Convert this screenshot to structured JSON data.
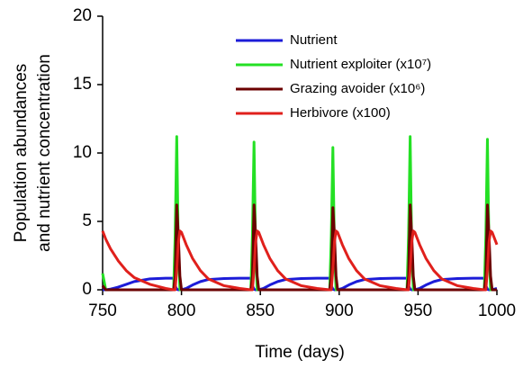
{
  "chart_data": {
    "type": "line",
    "xlabel": "Time (days)",
    "ylabel": [
      "Population abundances",
      "and nutrient concentration"
    ],
    "x": [
      750,
      752,
      755,
      760,
      765,
      770,
      780,
      790,
      795,
      796,
      797,
      798,
      799,
      800,
      803,
      807,
      812,
      817,
      827,
      837,
      844,
      845,
      846,
      847,
      848,
      849,
      852,
      856,
      861,
      866,
      876,
      886,
      894,
      895,
      896,
      897,
      898,
      899,
      902,
      906,
      911,
      916,
      926,
      936,
      943,
      944,
      945,
      946,
      947,
      948,
      951,
      955,
      960,
      965,
      975,
      985,
      992,
      993,
      994,
      995,
      996,
      997,
      1000
    ],
    "series": [
      {
        "name": "Nutrient",
        "color": "#1c1cd8",
        "values": [
          0,
          0,
          0.05,
          0.2,
          0.4,
          0.6,
          0.8,
          0.85,
          0.85,
          0.3,
          0.05,
          0,
          0,
          0,
          0.1,
          0.35,
          0.6,
          0.75,
          0.82,
          0.85,
          0.85,
          0.3,
          0.05,
          0,
          0,
          0,
          0.1,
          0.35,
          0.6,
          0.75,
          0.82,
          0.85,
          0.85,
          0.3,
          0.05,
          0,
          0,
          0,
          0.1,
          0.35,
          0.6,
          0.75,
          0.82,
          0.85,
          0.85,
          0.3,
          0.05,
          0,
          0,
          0,
          0.1,
          0.35,
          0.6,
          0.75,
          0.82,
          0.85,
          0.85,
          0.3,
          0.05,
          0,
          0,
          0,
          0.1
        ]
      },
      {
        "name": "Nutrient exploiter (x10⁷)",
        "color": "#24e024",
        "values": [
          1.2,
          0,
          0,
          0,
          0,
          0,
          0,
          0,
          0,
          4,
          11.2,
          3,
          0,
          0,
          0,
          0,
          0,
          0,
          0,
          0,
          0,
          4,
          10.8,
          3,
          0,
          0,
          0,
          0,
          0,
          0,
          0,
          0,
          0,
          4,
          10.4,
          3,
          0,
          0,
          0,
          0,
          0,
          0,
          0,
          0,
          0,
          4,
          11.2,
          3,
          0,
          0,
          0,
          0,
          0,
          0,
          0,
          0,
          0,
          4,
          11,
          3,
          0,
          0,
          0
        ]
      },
      {
        "name": "Grazing avoider (x10⁶)",
        "color": "#6b0000",
        "values": [
          0.3,
          0,
          0,
          0,
          0,
          0,
          0,
          0,
          0,
          1,
          6.2,
          4,
          1,
          0,
          0,
          0,
          0,
          0,
          0,
          0,
          0,
          1,
          6.2,
          4,
          1,
          0,
          0,
          0,
          0,
          0,
          0,
          0,
          0,
          1,
          6,
          4,
          1,
          0,
          0,
          0,
          0,
          0,
          0,
          0,
          0,
          1,
          6.2,
          4,
          1,
          0,
          0,
          0,
          0,
          0,
          0,
          0,
          0,
          1,
          6.2,
          4,
          1,
          0,
          0
        ]
      },
      {
        "name": "Herbivore (x100)",
        "color": "#e0201c",
        "values": [
          4.3,
          3.7,
          3.0,
          2.1,
          1.4,
          0.9,
          0.4,
          0.1,
          0,
          0,
          1.5,
          3.5,
          4.3,
          4.2,
          3.3,
          2.3,
          1.4,
          0.8,
          0.3,
          0.1,
          0,
          0,
          1.5,
          3.5,
          4.3,
          4.2,
          3.3,
          2.3,
          1.4,
          0.8,
          0.3,
          0.1,
          0,
          0,
          1.5,
          3.5,
          4.3,
          4.2,
          3.3,
          2.3,
          1.4,
          0.8,
          0.3,
          0.1,
          0,
          0,
          1.5,
          3.5,
          4.3,
          4.2,
          3.3,
          2.3,
          1.4,
          0.8,
          0.3,
          0.1,
          0,
          0,
          1.5,
          3.5,
          4.3,
          4.2,
          3.3
        ]
      }
    ],
    "xlim": [
      750,
      1000
    ],
    "xticks": [
      750,
      800,
      850,
      900,
      950,
      1000
    ],
    "ylim": [
      0,
      20
    ],
    "yticks": [
      0,
      5,
      10,
      15,
      20
    ],
    "grid": false,
    "legend": "upper right"
  }
}
